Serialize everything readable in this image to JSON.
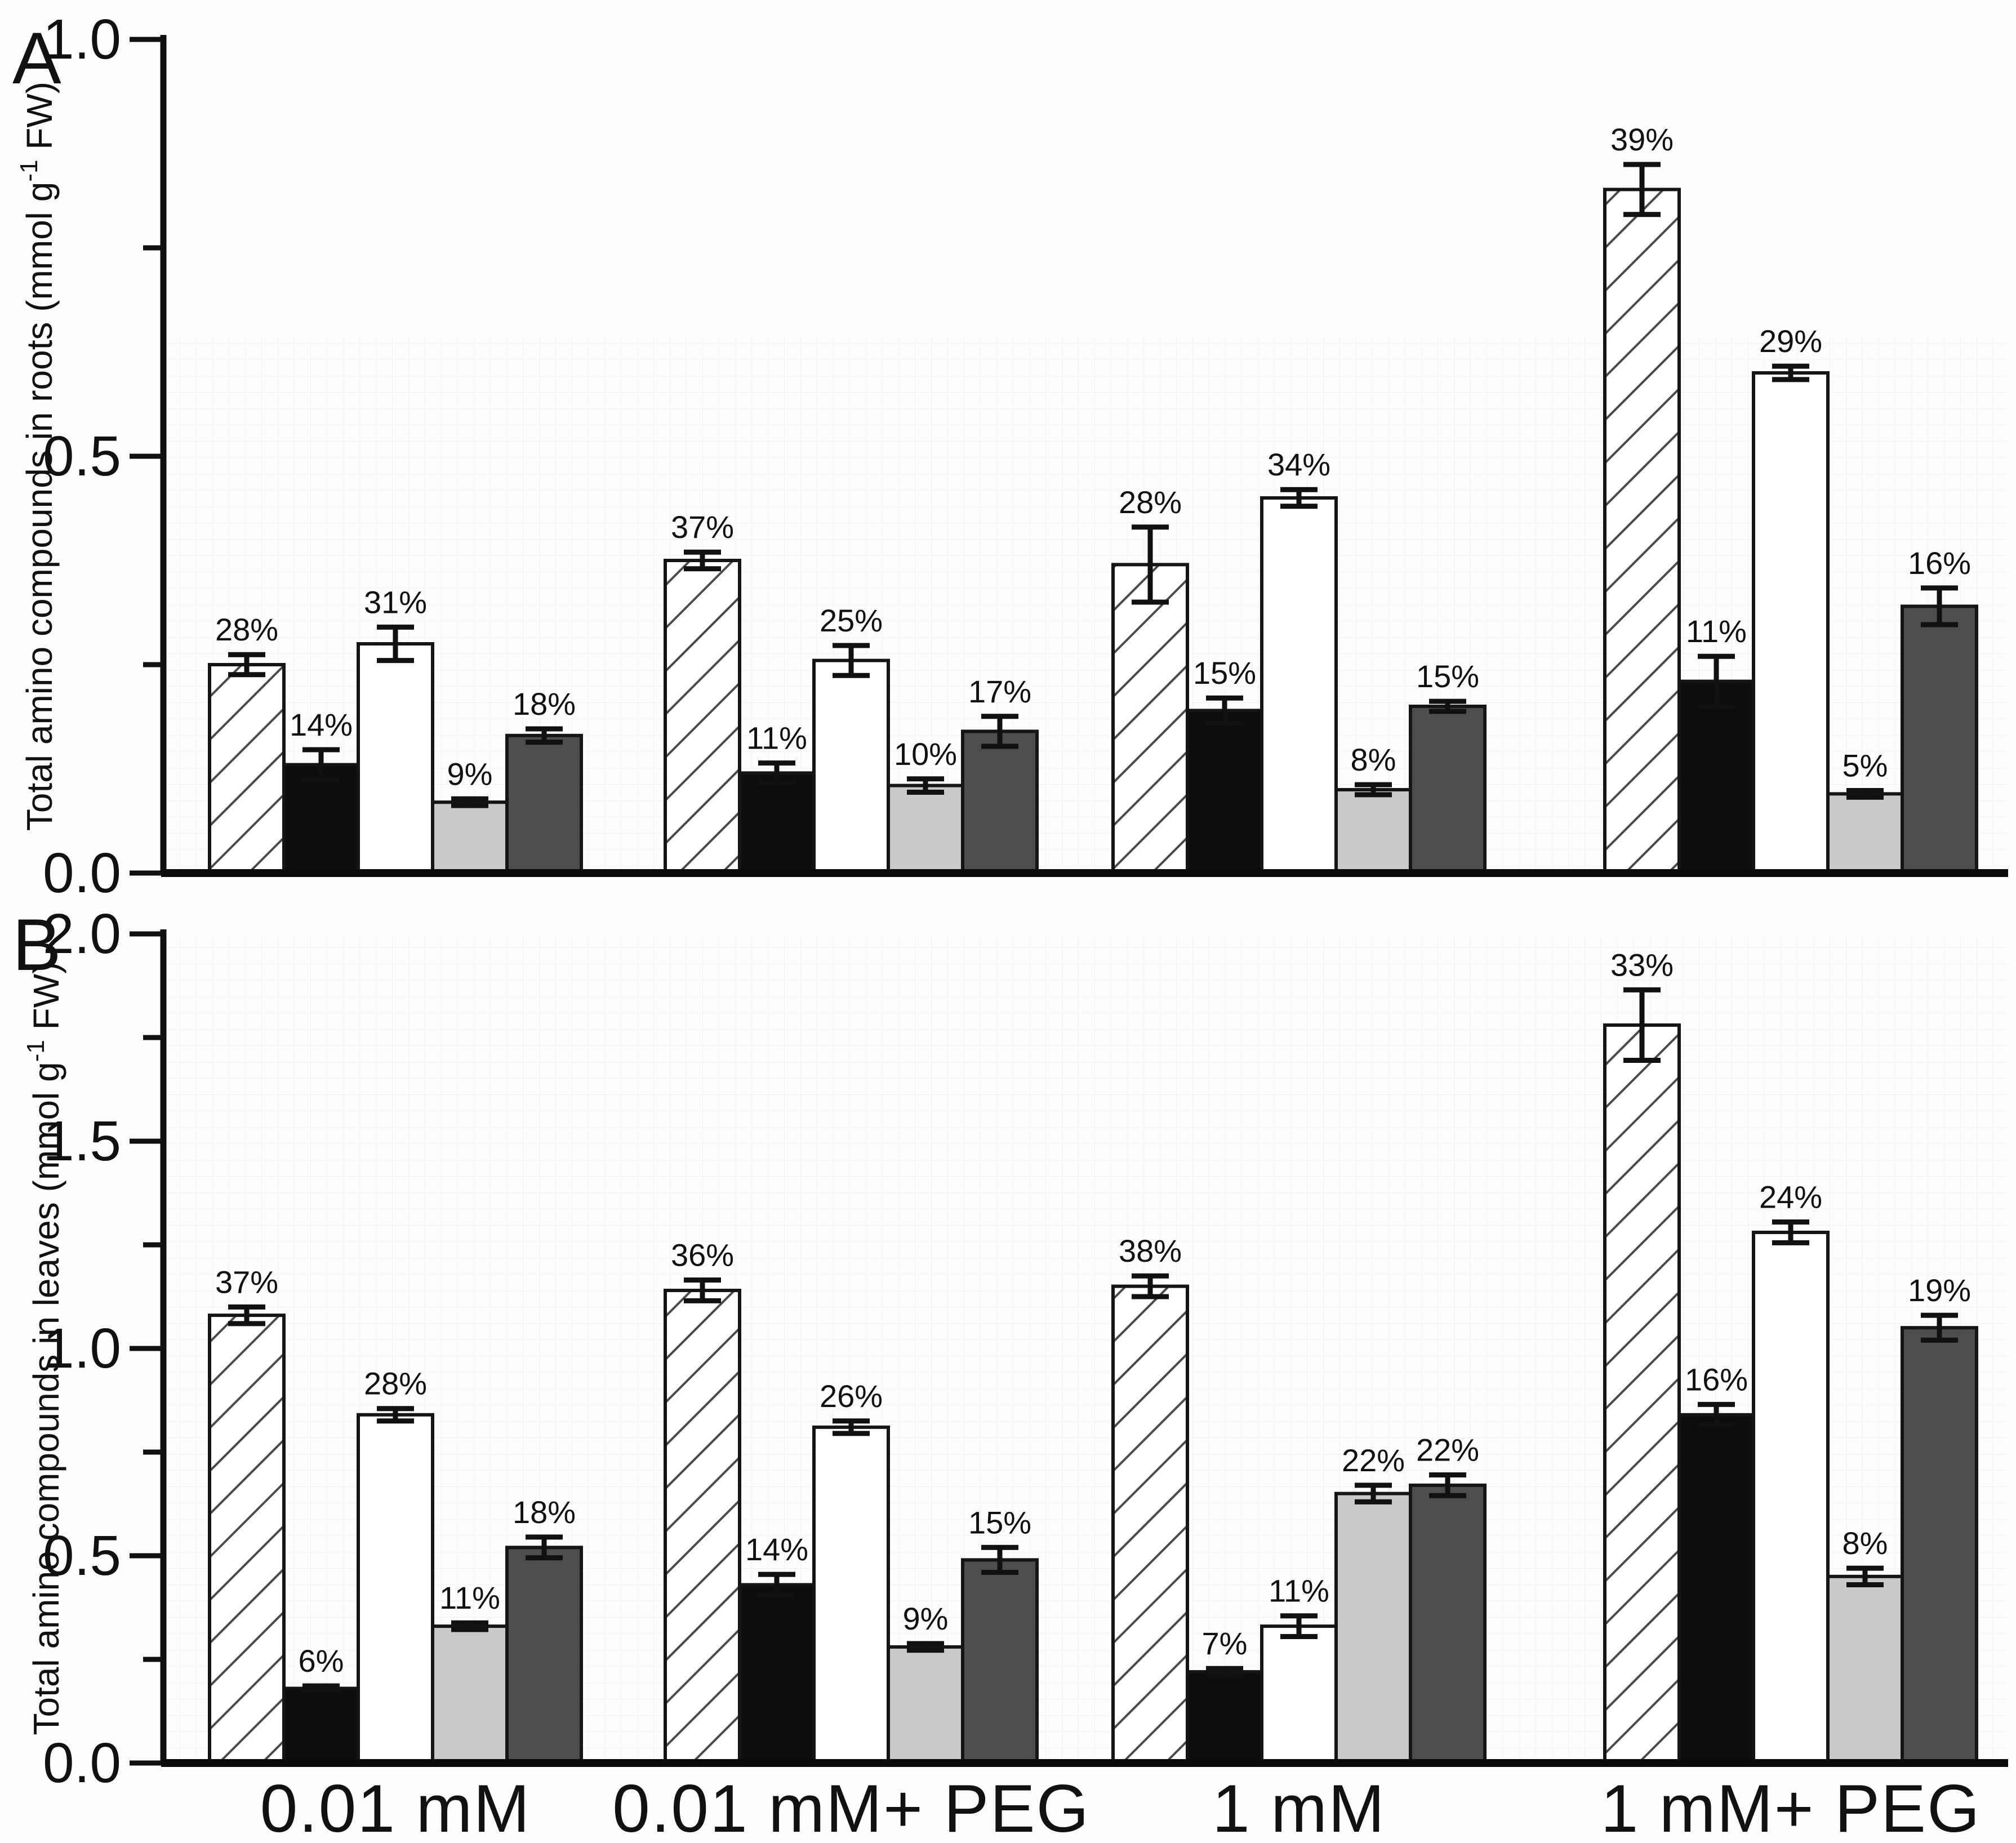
{
  "figure": {
    "kind": "two-panel grouped bar figure",
    "background": "#fdfdfd",
    "panel_letters": [
      "A",
      "B"
    ],
    "x_category_labels": [
      "0.01 mM",
      "0.01 mM+ PEG",
      "1 mM",
      "1 mM+ PEG"
    ],
    "bar_fills": {
      "hatched": "diagonal-hatch-white",
      "black": "#0d0d0d",
      "white": "#ffffff",
      "light-gray": "#c9c9c9",
      "dark-gray": "#4d4d4d"
    },
    "outline_color": "#151515",
    "hatch_line_color": "#4a4a4a"
  },
  "chart_data": [
    {
      "type": "bar",
      "panel": "A",
      "title": "",
      "xlabel": "",
      "ylabel": "Total amino compounds in roots (mmol g⁻¹ FW)",
      "ylabel_parts": {
        "pre": "Total amino compounds in roots (mmol g",
        "sup": "-1",
        "post": " FW)"
      },
      "ylim": [
        0,
        1.0
      ],
      "yticks_major": [
        {
          "value": 0.0,
          "label": "0.0"
        },
        {
          "value": 0.5,
          "label": "0.5"
        },
        {
          "value": 1.0,
          "label": "1.0"
        }
      ],
      "yticks_minor": [
        0.25,
        0.75
      ],
      "grid": false,
      "legend": "none",
      "categories": [
        "0.01 mM",
        "0.01 mM+ PEG",
        "1 mM",
        "1 mM+ PEG"
      ],
      "series": [
        {
          "name": "hatched",
          "values": [
            0.25,
            0.375,
            0.37,
            0.82
          ],
          "errors": [
            0.012,
            0.01,
            0.045,
            0.03
          ],
          "percent_labels": [
            "28%",
            "37%",
            "28%",
            "39%"
          ]
        },
        {
          "name": "black",
          "values": [
            0.13,
            0.12,
            0.195,
            0.23
          ],
          "errors": [
            0.018,
            0.012,
            0.015,
            0.03
          ],
          "percent_labels": [
            "14%",
            "11%",
            "15%",
            "11%"
          ]
        },
        {
          "name": "white",
          "values": [
            0.275,
            0.255,
            0.45,
            0.6
          ],
          "errors": [
            0.02,
            0.018,
            0.01,
            0.008
          ],
          "percent_labels": [
            "31%",
            "25%",
            "34%",
            "29%"
          ]
        },
        {
          "name": "light-gray",
          "values": [
            0.085,
            0.105,
            0.1,
            0.095
          ],
          "errors": [
            0.004,
            0.008,
            0.006,
            0.004
          ],
          "percent_labels": [
            "9%",
            "10%",
            "8%",
            "5%"
          ]
        },
        {
          "name": "dark-gray",
          "values": [
            0.165,
            0.17,
            0.2,
            0.32
          ],
          "errors": [
            0.008,
            0.018,
            0.006,
            0.022
          ],
          "percent_labels": [
            "18%",
            "17%",
            "15%",
            "16%"
          ]
        }
      ]
    },
    {
      "type": "bar",
      "panel": "B",
      "title": "",
      "xlabel": "",
      "ylabel": "Total amino compounds in leaves (mmol g⁻¹ FW)",
      "ylabel_parts": {
        "pre": "Total amino compounds in leaves (mmol g",
        "sup": "-1",
        "post": " FW)"
      },
      "ylim": [
        0,
        2.0
      ],
      "yticks_major": [
        {
          "value": 0.0,
          "label": "0.0"
        },
        {
          "value": 0.5,
          "label": "0.5"
        },
        {
          "value": 1.0,
          "label": "1.0"
        },
        {
          "value": 1.5,
          "label": "1.5"
        },
        {
          "value": 2.0,
          "label": "2.0"
        }
      ],
      "yticks_minor": [
        0.25,
        0.75,
        1.25,
        1.75
      ],
      "grid": false,
      "legend": "none",
      "categories": [
        "0.01 mM",
        "0.01 mM+ PEG",
        "1 mM",
        "1 mM+ PEG"
      ],
      "series": [
        {
          "name": "hatched",
          "values": [
            1.08,
            1.14,
            1.15,
            1.78
          ],
          "errors": [
            0.02,
            0.025,
            0.025,
            0.085
          ],
          "percent_labels": [
            "37%",
            "36%",
            "38%",
            "33%"
          ]
        },
        {
          "name": "black",
          "values": [
            0.18,
            0.43,
            0.22,
            0.84
          ],
          "errors": [
            0.006,
            0.025,
            0.008,
            0.025
          ],
          "percent_labels": [
            "6%",
            "14%",
            "7%",
            "16%"
          ]
        },
        {
          "name": "white",
          "values": [
            0.84,
            0.81,
            0.33,
            1.28
          ],
          "errors": [
            0.015,
            0.015,
            0.025,
            0.025
          ],
          "percent_labels": [
            "28%",
            "26%",
            "11%",
            "24%"
          ]
        },
        {
          "name": "light-gray",
          "values": [
            0.33,
            0.28,
            0.65,
            0.45
          ],
          "errors": [
            0.008,
            0.008,
            0.02,
            0.02
          ],
          "percent_labels": [
            "11%",
            "9%",
            "22%",
            "8%"
          ]
        },
        {
          "name": "dark-gray",
          "values": [
            0.52,
            0.49,
            0.67,
            1.05
          ],
          "errors": [
            0.025,
            0.03,
            0.025,
            0.03
          ],
          "percent_labels": [
            "18%",
            "15%",
            "22%",
            "19%"
          ]
        }
      ]
    }
  ]
}
